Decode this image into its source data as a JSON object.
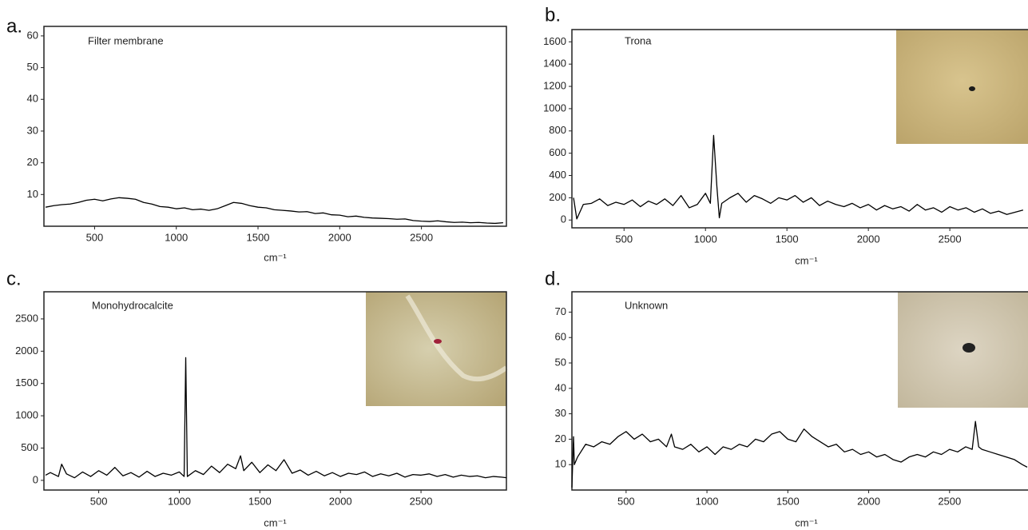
{
  "chart_data": [
    {
      "type": "line",
      "label": "a.",
      "title": "Filter membrane",
      "xlabel": "cm⁻¹",
      "color": "#000000",
      "x": [
        200,
        250,
        300,
        350,
        400,
        450,
        500,
        550,
        600,
        650,
        700,
        750,
        800,
        850,
        900,
        950,
        1000,
        1050,
        1100,
        1150,
        1200,
        1250,
        1300,
        1350,
        1400,
        1450,
        1500,
        1550,
        1600,
        1650,
        1700,
        1750,
        1800,
        1850,
        1900,
        1950,
        2000,
        2050,
        2100,
        2150,
        2200,
        2250,
        2300,
        2350,
        2400,
        2450,
        2500,
        2550,
        2600,
        2650,
        2700,
        2750,
        2800,
        2850,
        2900,
        2950,
        3000
      ],
      "values": [
        6,
        6.5,
        6.8,
        7,
        7.5,
        8.2,
        8.5,
        8,
        8.6,
        9,
        8.8,
        8.5,
        7.5,
        7,
        6.2,
        6,
        5.5,
        5.8,
        5.2,
        5.4,
        5,
        5.5,
        6.5,
        7.5,
        7.2,
        6.5,
        6,
        5.8,
        5.2,
        5,
        4.8,
        4.5,
        4.6,
        4,
        4.2,
        3.6,
        3.5,
        3,
        3.2,
        2.8,
        2.6,
        2.5,
        2.4,
        2.2,
        2.3,
        1.8,
        1.6,
        1.5,
        1.7,
        1.4,
        1.2,
        1.3,
        1.1,
        1.2,
        1,
        0.9,
        1.1
      ],
      "xlim": [
        190,
        3020
      ],
      "ylim": [
        0,
        63
      ],
      "xticks": [
        500,
        1000,
        1500,
        2000,
        2500
      ],
      "yticks": [
        10,
        20,
        30,
        40,
        50,
        60
      ]
    },
    {
      "type": "line",
      "label": "b.",
      "title": "Trona",
      "xlabel": "cm⁻¹",
      "color": "#000000",
      "x": [
        190,
        210,
        250,
        300,
        350,
        400,
        450,
        500,
        550,
        600,
        650,
        700,
        750,
        800,
        850,
        900,
        950,
        1000,
        1030,
        1050,
        1070,
        1085,
        1100,
        1150,
        1200,
        1250,
        1300,
        1350,
        1400,
        1450,
        1500,
        1550,
        1600,
        1650,
        1700,
        1750,
        1800,
        1850,
        1900,
        1950,
        2000,
        2050,
        2100,
        2150,
        2200,
        2250,
        2300,
        2350,
        2400,
        2450,
        2500,
        2550,
        2600,
        2650,
        2700,
        2750,
        2800,
        2850,
        2900,
        2950
      ],
      "values": [
        200,
        10,
        140,
        150,
        190,
        130,
        160,
        140,
        180,
        120,
        170,
        140,
        190,
        130,
        220,
        110,
        140,
        240,
        150,
        760,
        300,
        20,
        150,
        200,
        240,
        160,
        220,
        190,
        150,
        200,
        180,
        220,
        160,
        200,
        130,
        170,
        140,
        120,
        150,
        110,
        140,
        90,
        130,
        100,
        120,
        80,
        140,
        90,
        110,
        70,
        120,
        90,
        110,
        70,
        100,
        60,
        80,
        50,
        70,
        90
      ],
      "xlim": [
        180,
        2980
      ],
      "ylim": [
        -70,
        1710
      ],
      "xticks": [
        500,
        1000,
        1500,
        2000,
        2500
      ],
      "yticks": [
        0,
        200,
        400,
        600,
        800,
        1000,
        1200,
        1400,
        1600
      ]
    },
    {
      "type": "line",
      "label": "c.",
      "title": "Monohydrocalcite",
      "xlabel": "cm⁻¹",
      "color": "#000000",
      "x": [
        170,
        200,
        250,
        270,
        300,
        350,
        400,
        450,
        500,
        550,
        600,
        650,
        700,
        750,
        800,
        850,
        900,
        950,
        1000,
        1030,
        1040,
        1050,
        1100,
        1150,
        1200,
        1250,
        1300,
        1350,
        1380,
        1400,
        1450,
        1500,
        1550,
        1600,
        1650,
        1700,
        1750,
        1800,
        1850,
        1900,
        1950,
        2000,
        2050,
        2100,
        2150,
        2200,
        2250,
        2300,
        2350,
        2400,
        2450,
        2500,
        2550,
        2600,
        2650,
        2700,
        2750,
        2800,
        2850,
        2900,
        2950,
        3000,
        3030
      ],
      "values": [
        80,
        120,
        60,
        250,
        100,
        40,
        130,
        60,
        150,
        80,
        200,
        70,
        120,
        50,
        140,
        60,
        110,
        80,
        130,
        60,
        1900,
        60,
        150,
        90,
        220,
        120,
        250,
        180,
        380,
        150,
        280,
        120,
        240,
        150,
        320,
        110,
        160,
        80,
        140,
        70,
        120,
        60,
        110,
        90,
        130,
        60,
        100,
        70,
        110,
        50,
        90,
        80,
        100,
        60,
        90,
        50,
        80,
        60,
        70,
        40,
        60,
        50,
        40
      ],
      "xlim": [
        160,
        3030
      ],
      "ylim": [
        -150,
        2920
      ],
      "xticks": [
        500,
        1000,
        1500,
        2000,
        2500
      ],
      "yticks": [
        0,
        500,
        1000,
        1500,
        2000,
        2500
      ]
    },
    {
      "type": "line",
      "label": "d.",
      "title": "Unknown",
      "xlabel": "cm⁻¹",
      "color": "#000000",
      "x": [
        165,
        175,
        180,
        200,
        250,
        300,
        350,
        400,
        450,
        500,
        550,
        600,
        650,
        700,
        750,
        780,
        800,
        850,
        900,
        950,
        1000,
        1050,
        1100,
        1150,
        1200,
        1250,
        1300,
        1350,
        1400,
        1450,
        1500,
        1550,
        1600,
        1650,
        1700,
        1750,
        1800,
        1850,
        1900,
        1950,
        2000,
        2050,
        2100,
        2150,
        2200,
        2250,
        2300,
        2350,
        2400,
        2450,
        2500,
        2550,
        2600,
        2640,
        2660,
        2680,
        2700,
        2750,
        2800,
        2850,
        2900,
        2950,
        2980
      ],
      "values": [
        1,
        21,
        10,
        13,
        18,
        17,
        19,
        18,
        21,
        23,
        20,
        22,
        19,
        20,
        17,
        22,
        17,
        16,
        18,
        15,
        17,
        14,
        17,
        16,
        18,
        17,
        20,
        19,
        22,
        23,
        20,
        19,
        24,
        21,
        19,
        17,
        18,
        15,
        16,
        14,
        15,
        13,
        14,
        12,
        11,
        13,
        14,
        13,
        15,
        14,
        16,
        15,
        17,
        16,
        27,
        17,
        16,
        15,
        14,
        13,
        12,
        10,
        9
      ],
      "xlim": [
        165,
        2985
      ],
      "ylim": [
        0,
        78
      ],
      "xticks": [
        500,
        1000,
        1500,
        2000,
        2500
      ],
      "yticks": [
        10,
        20,
        30,
        40,
        50,
        60,
        70
      ]
    }
  ]
}
